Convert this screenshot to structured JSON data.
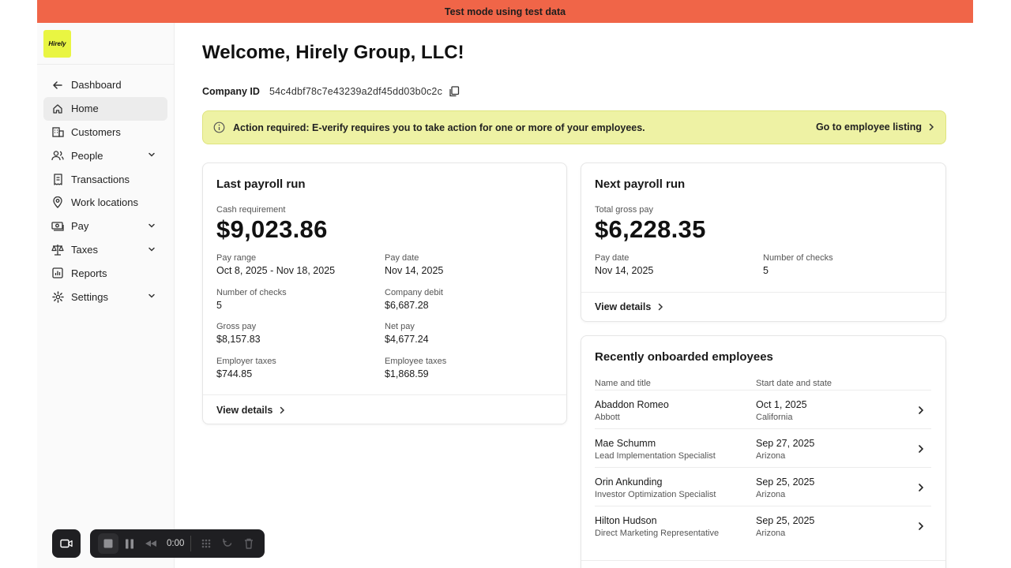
{
  "banner": {
    "text": "Test mode using test data"
  },
  "logo": {
    "text": "Hirely",
    "color": "#e9f542"
  },
  "nav": {
    "items": [
      {
        "label": "Dashboard",
        "icon": "arrow-left-icon"
      },
      {
        "label": "Home",
        "icon": "home-icon",
        "active": true
      },
      {
        "label": "Customers",
        "icon": "building-icon"
      },
      {
        "label": "People",
        "icon": "people-icon",
        "expandable": true
      },
      {
        "label": "Transactions",
        "icon": "receipt-icon"
      },
      {
        "label": "Work locations",
        "icon": "location-pin-icon"
      },
      {
        "label": "Pay",
        "icon": "money-icon",
        "expandable": true
      },
      {
        "label": "Taxes",
        "icon": "scale-icon",
        "expandable": true
      },
      {
        "label": "Reports",
        "icon": "chart-icon"
      },
      {
        "label": "Settings",
        "icon": "gear-icon",
        "expandable": true
      }
    ]
  },
  "page": {
    "title": "Welcome, Hirely Group, LLC!",
    "company_id_label": "Company ID",
    "company_id": "54c4dbf78c7e43239a2df45dd03b0c2c"
  },
  "alert": {
    "message": "Action required: E-verify requires you to take action for one or more of your employees.",
    "link": "Go to employee listing"
  },
  "last_payroll": {
    "title": "Last payroll run",
    "cash_label": "Cash requirement",
    "cash_value": "$9,023.86",
    "pay_range_label": "Pay range",
    "pay_range": "Oct 8, 2025 - Nov 18, 2025",
    "pay_date_label": "Pay date",
    "pay_date": "Nov 14, 2025",
    "checks_label": "Number of checks",
    "checks": "5",
    "debit_label": "Company debit",
    "debit": "$6,687.28",
    "gross_label": "Gross pay",
    "gross": "$8,157.83",
    "net_label": "Net pay",
    "net": "$4,677.24",
    "er_tax_label": "Employer taxes",
    "er_tax": "$744.85",
    "ee_tax_label": "Employee taxes",
    "ee_tax": "$1,868.59",
    "view": "View details"
  },
  "next_payroll": {
    "title": "Next payroll run",
    "gross_label": "Total gross pay",
    "gross": "$6,228.35",
    "pay_date_label": "Pay date",
    "pay_date": "Nov 14, 2025",
    "checks_label": "Number of checks",
    "checks": "5",
    "view": "View details"
  },
  "onboarded": {
    "title": "Recently onboarded employees",
    "col_name": "Name and title",
    "col_date": "Start date and state",
    "rows": [
      {
        "name": "Abaddon Romeo",
        "title": "Abbott",
        "date": "Oct 1, 2025",
        "state": "California"
      },
      {
        "name": "Mae Schumm",
        "title": "Lead Implementation Specialist",
        "date": "Sep 27, 2025",
        "state": "Arizona"
      },
      {
        "name": "Orin Ankunding",
        "title": "Investor Optimization Specialist",
        "date": "Sep 25, 2025",
        "state": "Arizona"
      },
      {
        "name": "Hilton Hudson",
        "title": "Direct Marketing Representative",
        "date": "Sep 25, 2025",
        "state": "Arizona"
      }
    ]
  },
  "recorder": {
    "time": "0:00"
  },
  "colors": {
    "banner": "#f06548",
    "alert_bg": "#eef2a4",
    "logo_bg": "#e9f542"
  }
}
